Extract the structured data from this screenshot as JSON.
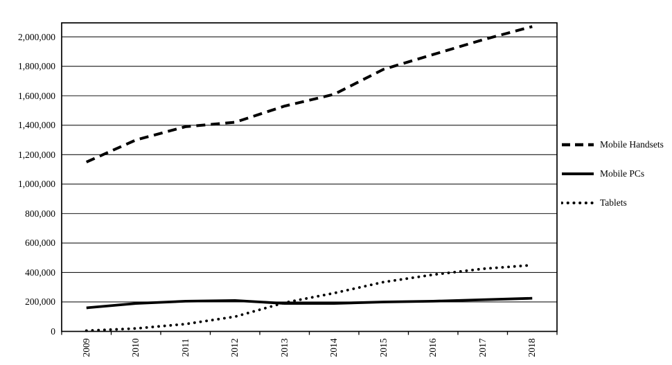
{
  "chart_data": {
    "type": "line",
    "title": "",
    "xlabel": "",
    "ylabel": "",
    "categories": [
      "2009",
      "2010",
      "2011",
      "2012",
      "2013",
      "2014",
      "2015",
      "2016",
      "2017",
      "2018"
    ],
    "series": [
      {
        "name": "Mobile Handsets",
        "line_style": "dashed",
        "values": [
          1150000,
          1300000,
          1390000,
          1420000,
          1530000,
          1610000,
          1780000,
          1880000,
          1980000,
          2070000
        ]
      },
      {
        "name": "Mobile PCs",
        "line_style": "solid",
        "values": [
          160000,
          190000,
          205000,
          210000,
          190000,
          190000,
          200000,
          205000,
          215000,
          225000
        ]
      },
      {
        "name": "Tablets",
        "line_style": "dotted",
        "values": [
          5000,
          20000,
          50000,
          100000,
          195000,
          260000,
          335000,
          385000,
          425000,
          450000
        ]
      }
    ],
    "y_axis": {
      "min": 0,
      "max": 2095000,
      "tick_interval": 200000,
      "tick_labels": [
        "0",
        "200,000",
        "400,000",
        "600,000",
        "800,000",
        "1,000,000",
        "1,200,000",
        "1,400,000",
        "1,600,000",
        "1,800,000",
        "2,000,000"
      ]
    },
    "grid": true,
    "legend_position": "right",
    "colors": {
      "series_line": "#000000",
      "grid_line": "#1a1a1a",
      "plot_border": "#000000",
      "background": "#ffffff",
      "text": "#000000"
    }
  }
}
